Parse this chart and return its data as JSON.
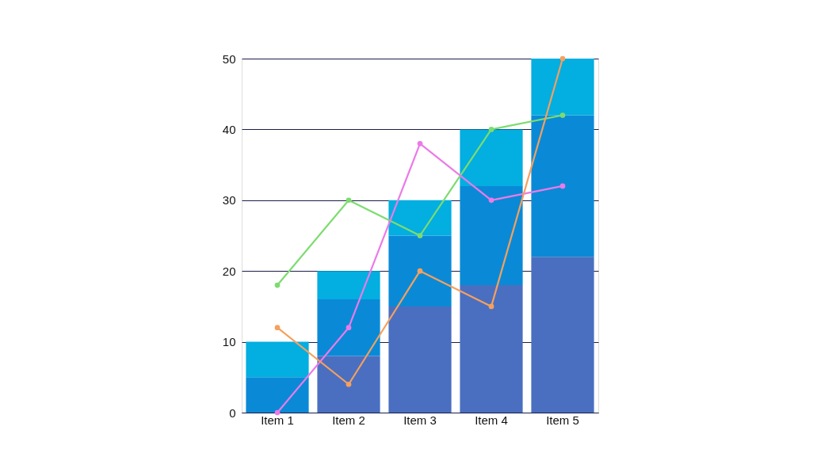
{
  "chart_data": {
    "type": "bar",
    "stacked": true,
    "categories": [
      "Item 1",
      "Item 2",
      "Item 3",
      "Item 4",
      "Item 5"
    ],
    "series": [
      {
        "color": "#4a6fc0",
        "values": [
          0,
          8,
          15,
          18,
          22
        ]
      },
      {
        "color": "#0a8ad6",
        "values": [
          5,
          8,
          10,
          14,
          20
        ]
      },
      {
        "color": "#03aee0",
        "values": [
          5,
          4,
          5,
          8,
          8
        ]
      },
      {
        "type": "line",
        "color": "#7ddc6f",
        "values": [
          18,
          30,
          25,
          40,
          42
        ]
      },
      {
        "type": "line",
        "color": "#ec7ae8",
        "values": [
          0,
          12,
          38,
          30,
          32
        ]
      },
      {
        "type": "line",
        "color": "#f5a05e",
        "values": [
          12,
          4,
          20,
          15,
          50
        ]
      }
    ],
    "ylim": [
      0,
      50
    ],
    "yticks": [
      0,
      10,
      20,
      30,
      40,
      50
    ],
    "grid": "y",
    "marker": "circle",
    "line_style": "solid"
  }
}
